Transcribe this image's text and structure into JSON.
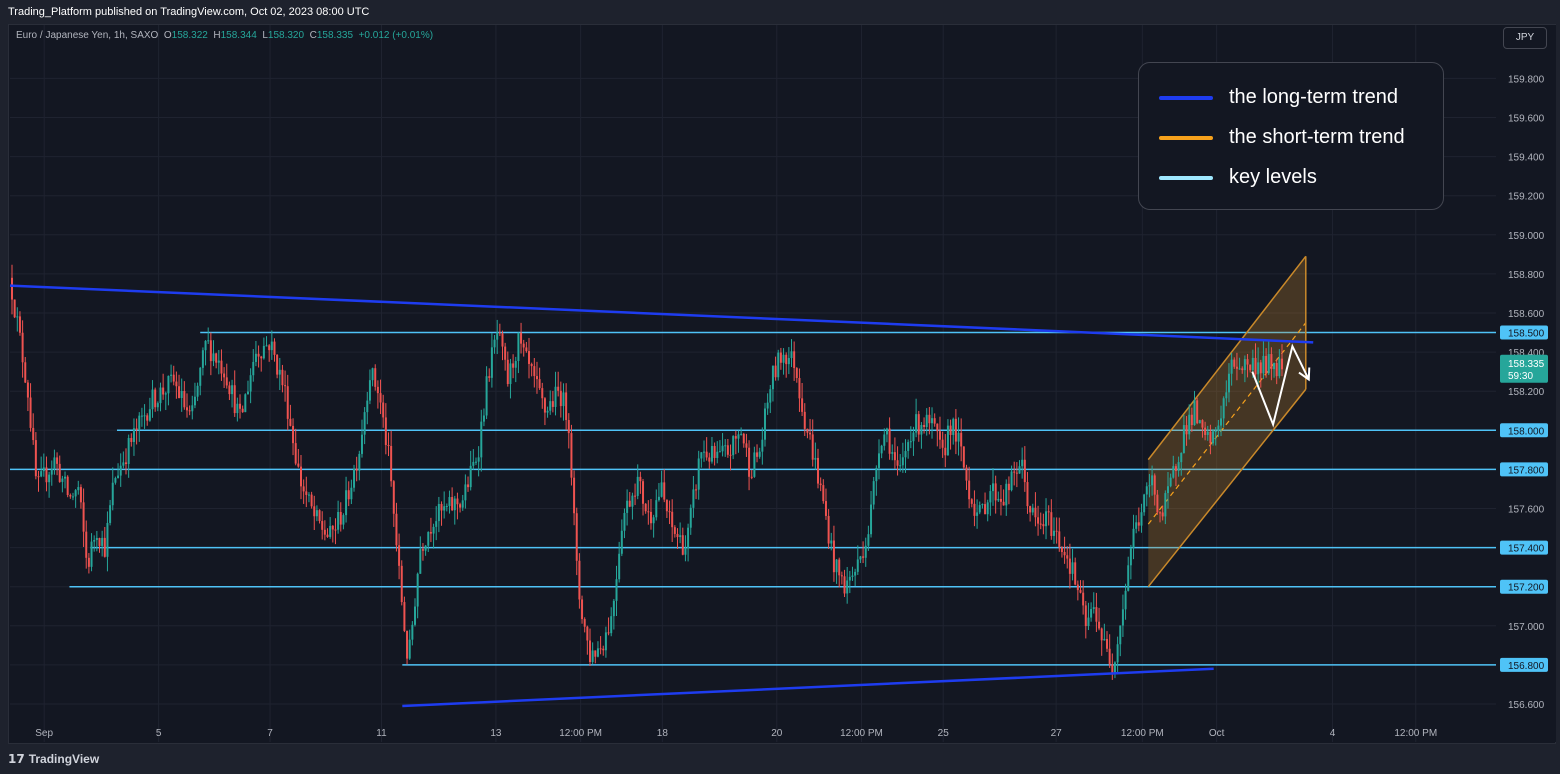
{
  "header": {
    "published": "Trading_Platform published on TradingView.com, Oct 02, 2023 08:00 UTC"
  },
  "symbol": {
    "name": "Euro / Japanese Yen, 1h, SAXO",
    "open_label": "O",
    "open": "158.322",
    "high_label": "H",
    "high": "158.344",
    "low_label": "L",
    "low": "158.320",
    "close_label": "C",
    "close": "158.335",
    "change": "+0.012 (+0.01%)"
  },
  "currency_button": "JPY",
  "legend": [
    {
      "label": "the long-term trend",
      "color": "#1e3cf0"
    },
    {
      "label": "the short-term trend",
      "color": "#f7a21c"
    },
    {
      "label": "key levels",
      "color": "#9fe8ff"
    }
  ],
  "footer": {
    "brand": "TradingView"
  },
  "chart_data": {
    "type": "candlestick",
    "colors": {
      "up": "#26a69a",
      "down": "#ef5350",
      "key_level": "#4fc3f7",
      "trend": "#1e3cf0",
      "channel": "#c9892a"
    },
    "y_axis": {
      "ticks": [
        "159.800",
        "159.600",
        "159.400",
        "159.200",
        "159.000",
        "158.800",
        "158.600",
        "158.400",
        "158.200",
        "157.600",
        "157.000",
        "156.600"
      ],
      "ylim": [
        156.56,
        160.02
      ]
    },
    "x_axis": {
      "ticks": [
        {
          "label": "Sep",
          "pos": 0.023
        },
        {
          "label": "5",
          "pos": 0.1
        },
        {
          "label": "7",
          "pos": 0.175
        },
        {
          "label": "11",
          "pos": 0.25
        },
        {
          "label": "13",
          "pos": 0.327
        },
        {
          "label": "12:00 PM",
          "pos": 0.384
        },
        {
          "label": "18",
          "pos": 0.439
        },
        {
          "label": "20",
          "pos": 0.516
        },
        {
          "label": "12:00 PM",
          "pos": 0.573
        },
        {
          "label": "25",
          "pos": 0.628
        },
        {
          "label": "27",
          "pos": 0.704
        },
        {
          "label": "12:00 PM",
          "pos": 0.762
        },
        {
          "label": "Oct",
          "pos": 0.812
        },
        {
          "label": "4",
          "pos": 0.89
        },
        {
          "label": "12:00 PM",
          "pos": 0.946
        }
      ]
    },
    "key_levels": [
      {
        "value": 158.5,
        "label": "158.500",
        "x_start": 0.128
      },
      {
        "value": 158.0,
        "label": "158.000",
        "x_start": 0.072
      },
      {
        "value": 157.8,
        "label": "157.800",
        "x_start": 0.0
      },
      {
        "value": 157.4,
        "label": "157.400",
        "x_start": 0.054
      },
      {
        "value": 157.2,
        "label": "157.200",
        "x_start": 0.04
      },
      {
        "value": 156.8,
        "label": "156.800",
        "x_start": 0.264
      }
    ],
    "current_price": {
      "value": 158.335,
      "label": "158.335",
      "countdown": "59:30"
    },
    "trendlines": [
      {
        "name": "",
        "x1": 0.0,
        "y1": 158.74,
        "x2": 0.877,
        "y2": 158.45
      },
      {
        "name": "",
        "x1": 0.264,
        "y1": 156.59,
        "x2": 0.81,
        "y2": 156.78
      }
    ],
    "channel": {
      "lower": {
        "x1": 0.766,
        "y1": 157.2,
        "x2": 0.872,
        "y2": 158.21
      },
      "upper": {
        "x1": 0.766,
        "y1": 157.85,
        "x2": 0.872,
        "y2": 158.89
      },
      "mid": {
        "x1": 0.766,
        "y1": 157.52,
        "x2": 0.872,
        "y2": 158.55
      }
    },
    "projection": [
      {
        "x": 0.836,
        "y": 158.3
      },
      {
        "x": 0.85,
        "y": 158.03
      },
      {
        "x": 0.863,
        "y": 158.43
      },
      {
        "x": 0.874,
        "y": 158.26
      }
    ],
    "path": [
      [
        0.0,
        158.78
      ],
      [
        0.006,
        158.5
      ],
      [
        0.012,
        158.2
      ],
      [
        0.018,
        157.7
      ],
      [
        0.03,
        157.85
      ],
      [
        0.04,
        157.65
      ],
      [
        0.046,
        157.7
      ],
      [
        0.052,
        157.3
      ],
      [
        0.058,
        157.5
      ],
      [
        0.064,
        157.4
      ],
      [
        0.07,
        157.75
      ],
      [
        0.082,
        157.95
      ],
      [
        0.095,
        158.15
      ],
      [
        0.11,
        158.25
      ],
      [
        0.122,
        158.05
      ],
      [
        0.132,
        158.45
      ],
      [
        0.145,
        158.3
      ],
      [
        0.155,
        158.05
      ],
      [
        0.165,
        158.4
      ],
      [
        0.175,
        158.45
      ],
      [
        0.185,
        158.2
      ],
      [
        0.195,
        157.75
      ],
      [
        0.205,
        157.55
      ],
      [
        0.215,
        157.45
      ],
      [
        0.225,
        157.6
      ],
      [
        0.235,
        157.9
      ],
      [
        0.242,
        158.3
      ],
      [
        0.248,
        158.2
      ],
      [
        0.255,
        157.85
      ],
      [
        0.262,
        157.25
      ],
      [
        0.268,
        156.8
      ],
      [
        0.276,
        157.4
      ],
      [
        0.285,
        157.55
      ],
      [
        0.295,
        157.6
      ],
      [
        0.305,
        157.65
      ],
      [
        0.315,
        157.9
      ],
      [
        0.322,
        158.3
      ],
      [
        0.328,
        158.5
      ],
      [
        0.335,
        158.25
      ],
      [
        0.342,
        158.45
      ],
      [
        0.35,
        158.3
      ],
      [
        0.36,
        158.1
      ],
      [
        0.37,
        158.2
      ],
      [
        0.376,
        158.05
      ],
      [
        0.382,
        157.2
      ],
      [
        0.39,
        156.85
      ],
      [
        0.398,
        156.9
      ],
      [
        0.405,
        157.05
      ],
      [
        0.412,
        157.55
      ],
      [
        0.422,
        157.75
      ],
      [
        0.43,
        157.55
      ],
      [
        0.438,
        157.7
      ],
      [
        0.445,
        157.5
      ],
      [
        0.455,
        157.4
      ],
      [
        0.465,
        157.9
      ],
      [
        0.475,
        157.85
      ],
      [
        0.485,
        157.9
      ],
      [
        0.492,
        158.0
      ],
      [
        0.498,
        157.8
      ],
      [
        0.505,
        157.9
      ],
      [
        0.512,
        158.25
      ],
      [
        0.52,
        158.4
      ],
      [
        0.528,
        158.35
      ],
      [
        0.535,
        158.05
      ],
      [
        0.54,
        157.9
      ],
      [
        0.548,
        157.6
      ],
      [
        0.555,
        157.3
      ],
      [
        0.562,
        157.2
      ],
      [
        0.57,
        157.3
      ],
      [
        0.578,
        157.5
      ],
      [
        0.585,
        157.95
      ],
      [
        0.59,
        158.0
      ],
      [
        0.598,
        157.75
      ],
      [
        0.606,
        158.0
      ],
      [
        0.614,
        158.05
      ],
      [
        0.622,
        158.0
      ],
      [
        0.628,
        157.85
      ],
      [
        0.632,
        158.05
      ],
      [
        0.638,
        157.95
      ],
      [
        0.645,
        157.7
      ],
      [
        0.652,
        157.55
      ],
      [
        0.66,
        157.7
      ],
      [
        0.668,
        157.65
      ],
      [
        0.675,
        157.75
      ],
      [
        0.68,
        157.85
      ],
      [
        0.686,
        157.6
      ],
      [
        0.692,
        157.5
      ],
      [
        0.698,
        157.55
      ],
      [
        0.705,
        157.45
      ],
      [
        0.712,
        157.35
      ],
      [
        0.718,
        157.2
      ],
      [
        0.724,
        157.0
      ],
      [
        0.73,
        157.1
      ],
      [
        0.736,
        156.9
      ],
      [
        0.742,
        156.8
      ],
      [
        0.748,
        157.05
      ],
      [
        0.755,
        157.45
      ],
      [
        0.762,
        157.6
      ],
      [
        0.768,
        157.75
      ],
      [
        0.775,
        157.55
      ],
      [
        0.782,
        157.75
      ],
      [
        0.79,
        158.0
      ],
      [
        0.797,
        158.1
      ],
      [
        0.803,
        157.95
      ],
      [
        0.81,
        157.95
      ],
      [
        0.817,
        158.15
      ],
      [
        0.823,
        158.35
      ],
      [
        0.827,
        158.335
      ]
    ]
  }
}
